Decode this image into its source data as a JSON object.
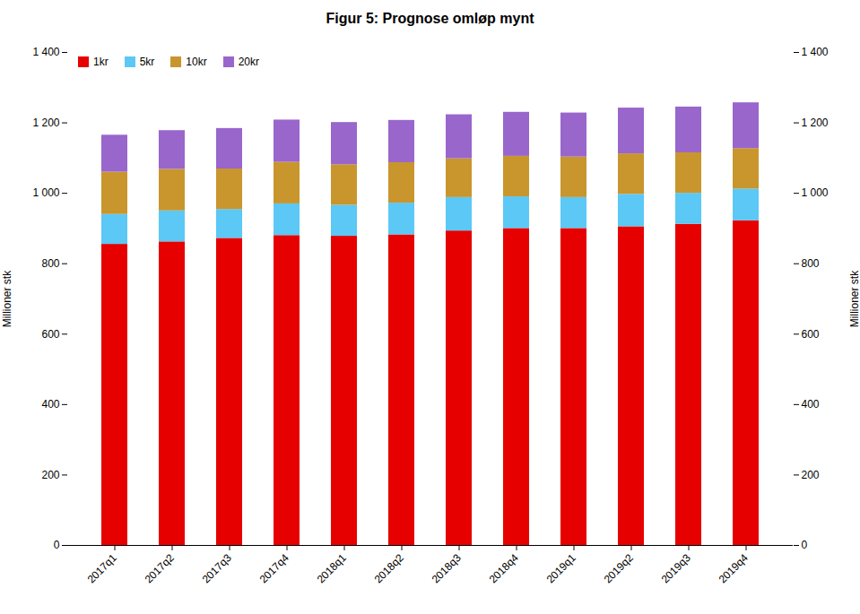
{
  "chart_data": {
    "type": "bar",
    "stacked": true,
    "title": "Figur 5: Prognose omløp mynt",
    "ylabel": "Millioner stk",
    "y2label": "Millioner stk",
    "categories": [
      "2017q1",
      "2017q2",
      "2017q3",
      "2017q4",
      "2018q1",
      "2018q2",
      "2018q3",
      "2018q4",
      "2019q1",
      "2019q2",
      "2019q3",
      "2019q4"
    ],
    "series": [
      {
        "name": "1kr",
        "color": "#e60000",
        "values": [
          855,
          862,
          872,
          880,
          878,
          882,
          893,
          900,
          900,
          905,
          912,
          922
        ]
      },
      {
        "name": "5kr",
        "color": "#5bc8f5",
        "values": [
          85,
          88,
          82,
          90,
          88,
          90,
          95,
          90,
          88,
          92,
          88,
          90
        ]
      },
      {
        "name": "10kr",
        "color": "#c8962d",
        "values": [
          120,
          118,
          115,
          118,
          115,
          115,
          110,
          115,
          115,
          115,
          115,
          115
        ]
      },
      {
        "name": "20kr",
        "color": "#9966cc",
        "values": [
          105,
          110,
          115,
          120,
          120,
          120,
          125,
          125,
          125,
          130,
          130,
          130
        ]
      }
    ],
    "ylim": [
      0,
      1400
    ],
    "yticks": [
      0,
      200,
      400,
      600,
      800,
      {
        "value": 1000,
        "label": "1 000"
      },
      {
        "value": 1200,
        "label": "1 200"
      },
      {
        "value": 1400,
        "label": "1 400"
      }
    ],
    "y2lim": [
      0,
      1400
    ],
    "y2ticks": [
      0,
      200,
      400,
      600,
      800,
      {
        "value": 1000,
        "label": "1 000"
      },
      {
        "value": 1200,
        "label": "1 200"
      },
      {
        "value": 1400,
        "label": "1 400"
      }
    ],
    "grid": false,
    "legend": "upper left"
  }
}
